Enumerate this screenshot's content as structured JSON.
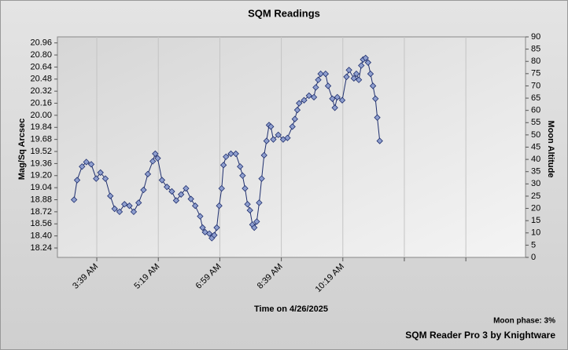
{
  "chart_data": {
    "type": "line",
    "title": "SQM Readings",
    "ylabel": "Mag/Sq Arcsec",
    "y2label": "Moon Altitude",
    "xlabel": "Time on 4/26/2025",
    "annotations": [
      "Moon phase: 3%",
      "SQM Reader Pro 3 by Knightware"
    ],
    "x": [
      182,
      187,
      195,
      202,
      210,
      218,
      225,
      233,
      241,
      248,
      256,
      264,
      272,
      279,
      287,
      295,
      302,
      310,
      314,
      318,
      325,
      333,
      341,
      348,
      356,
      364,
      372,
      379,
      387,
      391,
      395,
      402,
      406,
      410,
      414,
      418,
      422,
      425,
      429,
      437,
      445,
      452,
      456,
      460,
      464,
      468,
      472,
      475,
      479,
      483,
      487,
      491,
      495,
      499,
      502,
      506,
      514,
      522,
      529,
      537,
      541,
      545,
      548,
      556,
      564,
      572,
      575,
      579,
      583,
      591,
      595,
      602,
      606,
      610,
      618,
      625,
      629,
      637,
      641,
      645,
      649,
      652,
      656,
      660,
      664,
      668,
      672,
      675,
      679
    ],
    "series": [
      {
        "name": "SQM Readings",
        "color": "#1f2f6e",
        "marker_color": "#8f9fcf",
        "values": [
          18.88,
          19.14,
          19.32,
          19.38,
          19.35,
          19.16,
          19.24,
          19.16,
          18.93,
          18.76,
          18.72,
          18.82,
          18.8,
          18.72,
          18.84,
          19.01,
          19.22,
          19.39,
          19.49,
          19.43,
          19.14,
          19.05,
          18.99,
          18.87,
          18.95,
          19.03,
          18.89,
          18.8,
          18.66,
          18.51,
          18.45,
          18.43,
          18.37,
          18.41,
          18.51,
          18.8,
          19.03,
          19.34,
          19.45,
          19.49,
          19.49,
          19.32,
          19.2,
          19.03,
          18.82,
          18.74,
          18.55,
          18.51,
          18.59,
          18.84,
          19.16,
          19.47,
          19.66,
          19.87,
          19.85,
          19.68,
          19.74,
          19.68,
          19.7,
          19.85,
          19.95,
          20.07,
          20.16,
          20.2,
          20.26,
          20.24,
          20.37,
          20.47,
          20.55,
          20.55,
          20.39,
          20.22,
          20.1,
          20.24,
          20.2,
          20.51,
          20.6,
          20.49,
          20.55,
          20.47,
          20.66,
          20.74,
          20.76,
          20.7,
          20.55,
          20.39,
          20.22,
          19.97,
          19.66
        ]
      }
    ],
    "xlim": [
      155,
      916
    ],
    "xticks": [
      {
        "value": 219,
        "label": "3:39 AM"
      },
      {
        "value": 319,
        "label": "5:19 AM"
      },
      {
        "value": 419,
        "label": "6:59 AM"
      },
      {
        "value": 519,
        "label": "8:39 AM"
      },
      {
        "value": 619,
        "label": "10:19 AM"
      },
      {
        "value": 719,
        "label": null
      },
      {
        "value": 819,
        "label": null
      }
    ],
    "ylim": [
      18.115,
      21.04
    ],
    "yticks": [
      18.24,
      {
        "value": 18.4,
        "label": "18.40"
      },
      18.56,
      18.72,
      18.88,
      19.04,
      {
        "value": 19.2,
        "label": "19.20"
      },
      19.36,
      19.52,
      19.68,
      19.84,
      {
        "value": 20,
        "label": "20.00"
      },
      20.16,
      20.32,
      20.48,
      20.64,
      {
        "value": 20.8,
        "label": "20.80"
      },
      20.96
    ],
    "y2lim": [
      0,
      90
    ],
    "y2ticks": [
      0,
      5,
      10,
      15,
      20,
      25,
      30,
      35,
      40,
      45,
      50,
      55,
      60,
      65,
      70,
      75,
      80,
      85,
      90
    ],
    "grid": true
  }
}
